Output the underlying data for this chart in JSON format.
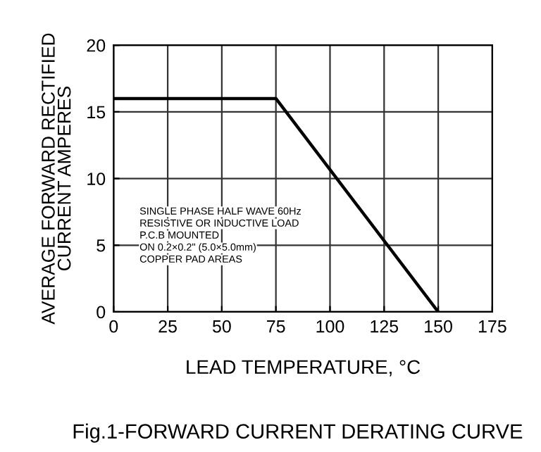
{
  "chart_data": {
    "type": "line",
    "title": "Fig.1-FORWARD CURRENT DERATING CURVE",
    "xlabel": "LEAD TEMPERATURE, °C",
    "ylabel": "AVERAGE FORWARD RECTIFIED\nCURRENT AMPERES",
    "x": [
      0,
      75,
      150
    ],
    "series": [
      {
        "color": "#000000",
        "values": [
          16,
          16,
          0
        ]
      }
    ],
    "xlim": [
      0,
      175
    ],
    "xticks": [
      0,
      25,
      50,
      75,
      100,
      125,
      150,
      175
    ],
    "ylim": [
      0,
      20
    ],
    "yticks": [
      0,
      5,
      10,
      15,
      20
    ],
    "grid": true,
    "marker": "none",
    "line_style": "solid",
    "annotations": [
      "SINGLE PHASE HALF WAVE 60Hz",
      "RESISTIVE OR INDUCTIVE LOAD",
      "P.C.B MOUNTED",
      "ON 0.2×0.2\" (5.0×5.0mm)",
      "COPPER PAD AREAS"
    ]
  }
}
